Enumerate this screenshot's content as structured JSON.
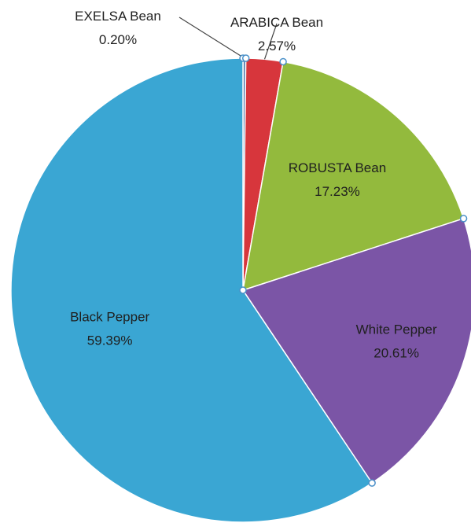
{
  "chart_data": {
    "type": "pie",
    "start_angle_deg": -90,
    "direction": "clockwise",
    "slices": [
      {
        "label": "EXELSA Bean",
        "value": 0.2,
        "display": "0.20%",
        "color": "#5a7fb0"
      },
      {
        "label": "ARABICA Bean",
        "value": 2.57,
        "display": "2.57%",
        "color": "#d7363c"
      },
      {
        "label": "ROBUSTA Bean",
        "value": 17.23,
        "display": "17.23%",
        "color": "#93ba3d"
      },
      {
        "label": "White Pepper",
        "value": 20.61,
        "display": "20.61%",
        "color": "#7b55a6"
      },
      {
        "label": "Black Pepper",
        "value": 59.39,
        "display": "59.39%",
        "color": "#3aa6d3"
      }
    ]
  }
}
